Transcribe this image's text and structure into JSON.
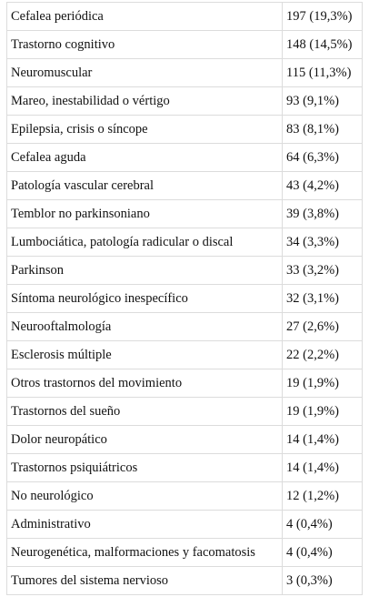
{
  "table": {
    "rows": [
      [
        "Cefalea periódica",
        "197 (19,3%)"
      ],
      [
        "Trastorno cognitivo",
        "148 (14,5%)"
      ],
      [
        "Neuromuscular",
        "115 (11,3%)"
      ],
      [
        "Mareo, inestabilidad o vértigo",
        "93 (9,1%)"
      ],
      [
        "Epilepsia, crisis o síncope",
        "83 (8,1%)"
      ],
      [
        "Cefalea aguda",
        "64 (6,3%)"
      ],
      [
        "Patología vascular cerebral",
        "43 (4,2%)"
      ],
      [
        "Temblor no parkinsoniano",
        "39 (3,8%)"
      ],
      [
        "Lumbociática, patología radicular o discal",
        "34 (3,3%)"
      ],
      [
        "Parkinson",
        "33 (3,2%)"
      ],
      [
        "Síntoma neurológico inespecífico",
        "32 (3,1%)"
      ],
      [
        "Neurooftalmología",
        "27 (2,6%)"
      ],
      [
        "Esclerosis múltiple",
        "22 (2,2%)"
      ],
      [
        "Otros trastornos del movimiento",
        "19 (1,9%)"
      ],
      [
        "Trastornos del sueño",
        "19 (1,9%)"
      ],
      [
        "Dolor neuropático",
        "14 (1,4%)"
      ],
      [
        "Trastornos psiquiátricos",
        "14 (1,4%)"
      ],
      [
        "No neurológico",
        "12 (1,2%)"
      ],
      [
        "Administrativo",
        "4 (0,4%)"
      ],
      [
        "Neurogenética, malformaciones y facomatosis",
        "4 (0,4%)"
      ],
      [
        "Tumores del sistema nervioso",
        "3 (0,3%)"
      ]
    ]
  }
}
